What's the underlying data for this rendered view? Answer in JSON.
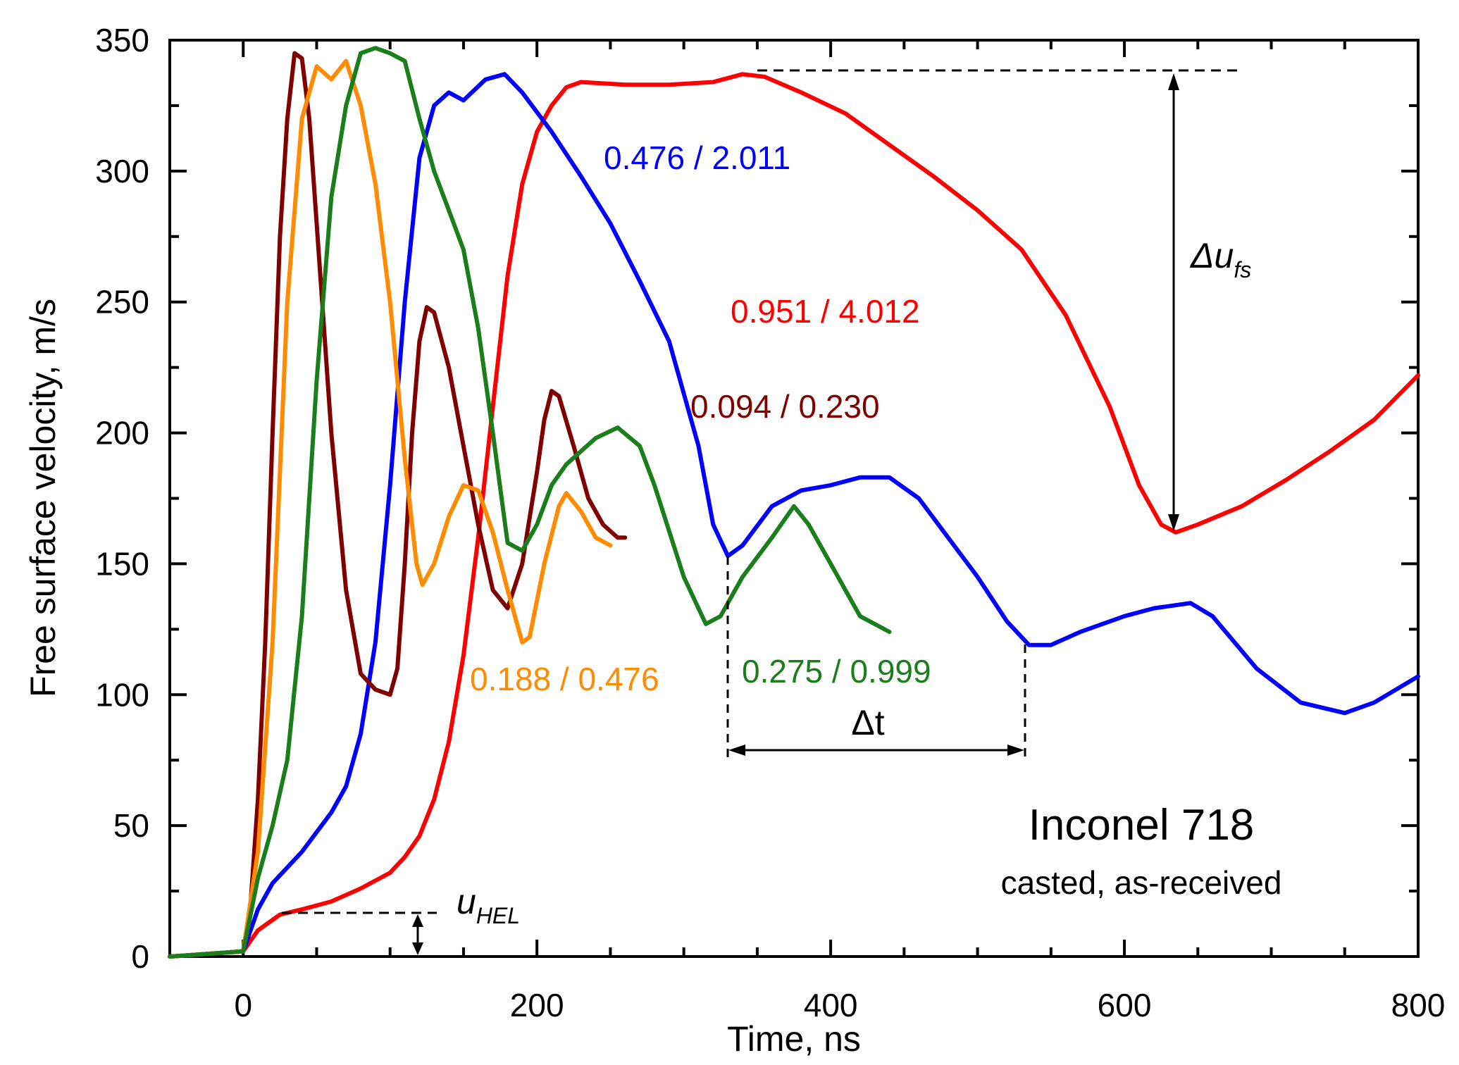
{
  "chart_data": {
    "type": "line",
    "xlabel": "Time, ns",
    "ylabel": "Free surface velocity, m/s",
    "xlim": [
      -50,
      800
    ],
    "ylim": [
      0,
      350
    ],
    "xticks": [
      0,
      200,
      400,
      600,
      800
    ],
    "yticks": [
      0,
      50,
      100,
      150,
      200,
      250,
      300,
      350
    ],
    "grid": false,
    "annotations": {
      "material": "Inconel 718",
      "condition": "casted, as-received",
      "delta_u_fs": "Δu",
      "delta_u_fs_sub": "fs",
      "delta_t": "Δt",
      "u_hel": "u",
      "u_hel_sub": "HEL"
    },
    "series": [
      {
        "label": "0.951 / 4.012",
        "color": "#ff0000",
        "points": [
          [
            -50,
            0
          ],
          [
            0,
            2
          ],
          [
            10,
            10
          ],
          [
            25,
            16
          ],
          [
            40,
            18
          ],
          [
            60,
            21
          ],
          [
            80,
            26
          ],
          [
            100,
            32
          ],
          [
            110,
            38
          ],
          [
            120,
            46
          ],
          [
            130,
            60
          ],
          [
            140,
            82
          ],
          [
            150,
            115
          ],
          [
            160,
            160
          ],
          [
            170,
            210
          ],
          [
            180,
            260
          ],
          [
            190,
            295
          ],
          [
            200,
            315
          ],
          [
            210,
            325
          ],
          [
            220,
            332
          ],
          [
            230,
            334
          ],
          [
            260,
            333
          ],
          [
            290,
            333
          ],
          [
            320,
            334
          ],
          [
            340,
            337
          ],
          [
            355,
            336
          ],
          [
            380,
            330
          ],
          [
            410,
            322
          ],
          [
            440,
            310
          ],
          [
            470,
            298
          ],
          [
            500,
            285
          ],
          [
            530,
            270
          ],
          [
            560,
            245
          ],
          [
            590,
            210
          ],
          [
            610,
            180
          ],
          [
            625,
            165
          ],
          [
            635,
            162
          ],
          [
            650,
            165
          ],
          [
            680,
            172
          ],
          [
            710,
            182
          ],
          [
            740,
            193
          ],
          [
            770,
            205
          ],
          [
            800,
            222
          ]
        ]
      },
      {
        "label": "0.476 / 2.011",
        "color": "#0000ff",
        "points": [
          [
            -50,
            0
          ],
          [
            0,
            2
          ],
          [
            10,
            18
          ],
          [
            20,
            28
          ],
          [
            40,
            40
          ],
          [
            60,
            55
          ],
          [
            70,
            65
          ],
          [
            80,
            85
          ],
          [
            90,
            120
          ],
          [
            100,
            180
          ],
          [
            110,
            250
          ],
          [
            120,
            305
          ],
          [
            130,
            325
          ],
          [
            140,
            330
          ],
          [
            150,
            327
          ],
          [
            165,
            335
          ],
          [
            178,
            337
          ],
          [
            190,
            330
          ],
          [
            210,
            315
          ],
          [
            230,
            298
          ],
          [
            250,
            280
          ],
          [
            270,
            258
          ],
          [
            290,
            235
          ],
          [
            310,
            195
          ],
          [
            320,
            165
          ],
          [
            330,
            153
          ],
          [
            340,
            157
          ],
          [
            360,
            172
          ],
          [
            380,
            178
          ],
          [
            400,
            180
          ],
          [
            420,
            183
          ],
          [
            440,
            183
          ],
          [
            460,
            175
          ],
          [
            480,
            160
          ],
          [
            500,
            145
          ],
          [
            520,
            128
          ],
          [
            535,
            119
          ],
          [
            550,
            119
          ],
          [
            570,
            124
          ],
          [
            600,
            130
          ],
          [
            620,
            133
          ],
          [
            645,
            135
          ],
          [
            660,
            130
          ],
          [
            690,
            110
          ],
          [
            720,
            97
          ],
          [
            750,
            93
          ],
          [
            770,
            97
          ],
          [
            800,
            107
          ]
        ]
      },
      {
        "label": "0.094 / 0.230",
        "color": "#800000",
        "points": [
          [
            -50,
            0
          ],
          [
            0,
            2
          ],
          [
            5,
            20
          ],
          [
            10,
            60
          ],
          [
            15,
            120
          ],
          [
            20,
            200
          ],
          [
            25,
            275
          ],
          [
            30,
            320
          ],
          [
            35,
            345
          ],
          [
            40,
            343
          ],
          [
            45,
            320
          ],
          [
            50,
            280
          ],
          [
            60,
            200
          ],
          [
            70,
            140
          ],
          [
            80,
            108
          ],
          [
            90,
            102
          ],
          [
            100,
            100
          ],
          [
            105,
            110
          ],
          [
            110,
            150
          ],
          [
            115,
            200
          ],
          [
            120,
            235
          ],
          [
            125,
            248
          ],
          [
            130,
            246
          ],
          [
            140,
            225
          ],
          [
            150,
            195
          ],
          [
            160,
            165
          ],
          [
            170,
            140
          ],
          [
            180,
            133
          ],
          [
            190,
            150
          ],
          [
            200,
            185
          ],
          [
            205,
            205
          ],
          [
            210,
            216
          ],
          [
            215,
            214
          ],
          [
            225,
            195
          ],
          [
            235,
            175
          ],
          [
            245,
            165
          ],
          [
            255,
            160
          ],
          [
            260,
            160
          ]
        ]
      },
      {
        "label": "0.188 / 0.476",
        "color": "#ff8c00",
        "points": [
          [
            -50,
            0
          ],
          [
            0,
            2
          ],
          [
            10,
            40
          ],
          [
            20,
            120
          ],
          [
            30,
            250
          ],
          [
            40,
            320
          ],
          [
            50,
            340
          ],
          [
            60,
            335
          ],
          [
            70,
            342
          ],
          [
            80,
            325
          ],
          [
            90,
            295
          ],
          [
            100,
            250
          ],
          [
            110,
            190
          ],
          [
            118,
            150
          ],
          [
            122,
            142
          ],
          [
            130,
            150
          ],
          [
            140,
            168
          ],
          [
            150,
            180
          ],
          [
            160,
            178
          ],
          [
            170,
            162
          ],
          [
            180,
            140
          ],
          [
            190,
            120
          ],
          [
            195,
            122
          ],
          [
            205,
            150
          ],
          [
            215,
            172
          ],
          [
            220,
            177
          ],
          [
            230,
            170
          ],
          [
            240,
            160
          ],
          [
            250,
            157
          ]
        ]
      },
      {
        "label": "0.275 / 0.999",
        "color": "#1a7f1a",
        "points": [
          [
            -50,
            0
          ],
          [
            0,
            2
          ],
          [
            10,
            30
          ],
          [
            20,
            50
          ],
          [
            30,
            75
          ],
          [
            40,
            130
          ],
          [
            50,
            220
          ],
          [
            60,
            290
          ],
          [
            70,
            325
          ],
          [
            80,
            345
          ],
          [
            90,
            347
          ],
          [
            100,
            345
          ],
          [
            110,
            342
          ],
          [
            120,
            320
          ],
          [
            130,
            300
          ],
          [
            140,
            285
          ],
          [
            150,
            270
          ],
          [
            160,
            240
          ],
          [
            170,
            200
          ],
          [
            180,
            158
          ],
          [
            190,
            155
          ],
          [
            200,
            165
          ],
          [
            210,
            180
          ],
          [
            220,
            188
          ],
          [
            240,
            198
          ],
          [
            255,
            202
          ],
          [
            270,
            195
          ],
          [
            280,
            180
          ],
          [
            300,
            145
          ],
          [
            315,
            127
          ],
          [
            325,
            130
          ],
          [
            340,
            145
          ],
          [
            360,
            160
          ],
          [
            375,
            172
          ],
          [
            385,
            165
          ],
          [
            400,
            150
          ],
          [
            420,
            130
          ],
          [
            440,
            124
          ]
        ]
      }
    ]
  }
}
